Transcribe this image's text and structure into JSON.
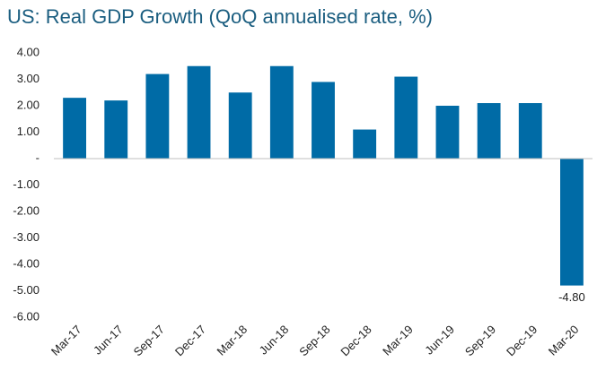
{
  "chart_data": {
    "type": "bar",
    "title": "US: Real GDP Growth (QoQ annualised rate, %)",
    "categories": [
      "Mar-17",
      "Jun-17",
      "Sep-17",
      "Dec-17",
      "Mar-18",
      "Jun-18",
      "Sep-18",
      "Dec-18",
      "Mar-19",
      "Jun-19",
      "Sep-19",
      "Dec-19",
      "Mar-20"
    ],
    "values": [
      2.3,
      2.2,
      3.2,
      3.5,
      2.5,
      3.5,
      2.9,
      1.1,
      3.1,
      2.0,
      2.1,
      2.1,
      -4.8
    ],
    "value_labels": [
      null,
      null,
      null,
      null,
      null,
      null,
      null,
      null,
      null,
      null,
      null,
      null,
      "-4.80"
    ],
    "color": "#006ba6",
    "ylim": [
      -6,
      4
    ],
    "yticks": [
      {
        "value": 4,
        "label": "4.00"
      },
      {
        "value": 3,
        "label": "3.00"
      },
      {
        "value": 2,
        "label": "2.00"
      },
      {
        "value": 1,
        "label": "1.00"
      },
      {
        "value": 0,
        "label": "-"
      },
      {
        "value": -1,
        "label": "-1.00"
      },
      {
        "value": -2,
        "label": "-2.00"
      },
      {
        "value": -3,
        "label": "-3.00"
      },
      {
        "value": -4,
        "label": "-4.00"
      },
      {
        "value": -5,
        "label": "-5.00"
      },
      {
        "value": -6,
        "label": "-6.00"
      }
    ],
    "grid": false
  }
}
